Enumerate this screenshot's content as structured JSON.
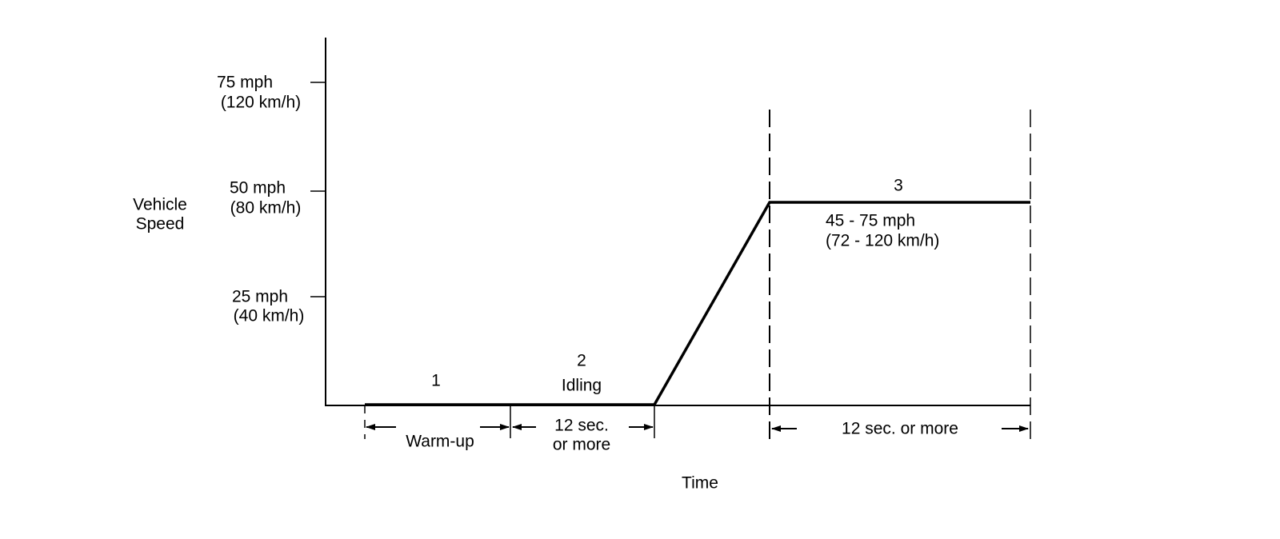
{
  "y_axis": {
    "label": [
      "Vehicle",
      "Speed"
    ],
    "ticks": [
      {
        "mph": "75 mph",
        "kmh": "(120 km/h)"
      },
      {
        "mph": "50 mph",
        "kmh": "(80 km/h)"
      },
      {
        "mph": "25 mph",
        "kmh": "(40 km/h)"
      }
    ]
  },
  "x_axis": {
    "label": "Time"
  },
  "phases": [
    {
      "number": "1",
      "duration": "Warm-up"
    },
    {
      "number": "2",
      "name": "Idling",
      "duration": [
        "12 sec.",
        "or more"
      ]
    },
    {
      "number": "3",
      "speed": [
        "45 - 75 mph",
        "(72 - 120 km/h)"
      ],
      "duration": "12 sec. or more"
    }
  ]
}
